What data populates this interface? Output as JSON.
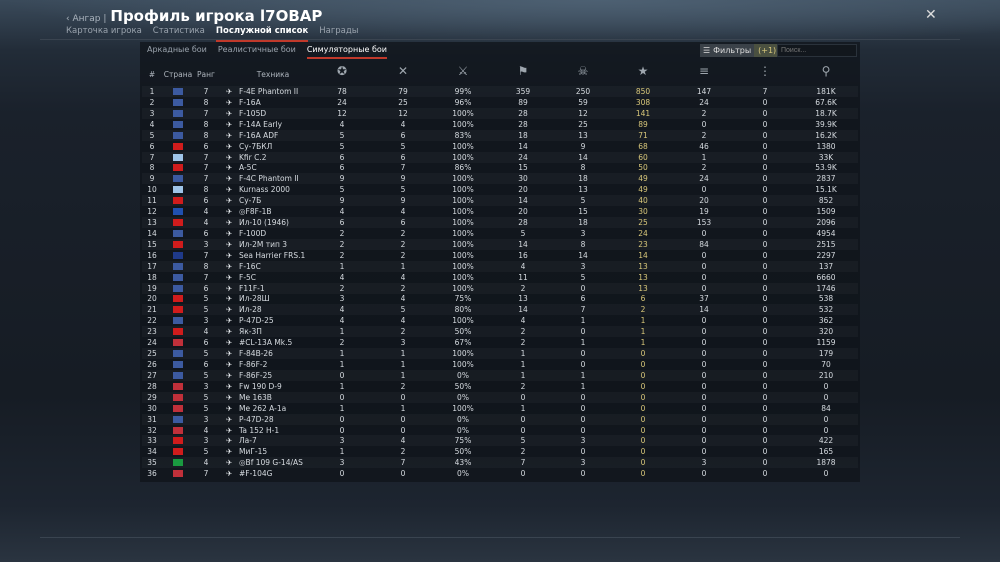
{
  "header": {
    "back_label": "Ангар",
    "separator": "|",
    "title": "Профиль игрока l7OBAP"
  },
  "tabs": [
    {
      "label": "Карточка игрока"
    },
    {
      "label": "Статистика"
    },
    {
      "label": "Послужной список",
      "active": true
    },
    {
      "label": "Награды"
    }
  ],
  "subtabs": [
    {
      "label": "Аркадные бои"
    },
    {
      "label": "Реалистичные бои"
    },
    {
      "label": "Симуляторные бои",
      "active": true
    }
  ],
  "filter": {
    "label": "Фильтры",
    "count": "(+1)"
  },
  "search": {
    "placeholder": "Поиск..."
  },
  "columns": {
    "num": "#",
    "country": "Страна",
    "rank": "Ранг",
    "vehicle": "Техника",
    "stat_icons": [
      "rank-star-icon",
      "battles-crossed-swords-icon",
      "victories-icon",
      "missions-flag-icon",
      "deaths-skull-icon",
      "air-kills-stars-icon",
      "ground-kills-icon",
      "naval-kills-icon",
      "respawns-icon"
    ]
  },
  "flag_colors": {
    "us": "#3c5aa0",
    "ussr": "#d01c1c",
    "china": "#d01c1c",
    "israel": "#9fc4e8",
    "france": "#2050b0",
    "uk": "#1f3a8a",
    "germany": "#c0303a",
    "italy": "#1a9a40"
  },
  "accent_yellow": "#d8c77a",
  "rows": [
    [
      "1",
      "us",
      "7",
      "F-4E Phantom II",
      "78",
      "79",
      "99%",
      "359",
      "250",
      "850",
      "147",
      "7",
      "181K"
    ],
    [
      "2",
      "us",
      "8",
      "F-16A",
      "24",
      "25",
      "96%",
      "89",
      "59",
      "308",
      "24",
      "0",
      "67.6K"
    ],
    [
      "3",
      "us",
      "7",
      "F-105D",
      "12",
      "12",
      "100%",
      "28",
      "12",
      "141",
      "2",
      "0",
      "18.7K"
    ],
    [
      "4",
      "us",
      "8",
      "F-14A Early",
      "4",
      "4",
      "100%",
      "28",
      "25",
      "89",
      "0",
      "0",
      "39.9K"
    ],
    [
      "5",
      "us",
      "8",
      "F-16A ADF",
      "5",
      "6",
      "83%",
      "18",
      "13",
      "71",
      "2",
      "0",
      "16.2K"
    ],
    [
      "6",
      "ussr",
      "6",
      "Су-7БКЛ",
      "5",
      "5",
      "100%",
      "14",
      "9",
      "68",
      "46",
      "0",
      "1380"
    ],
    [
      "7",
      "israel",
      "7",
      "Kfir C.2",
      "6",
      "6",
      "100%",
      "24",
      "14",
      "60",
      "1",
      "0",
      "33K"
    ],
    [
      "8",
      "china",
      "7",
      "A-5C",
      "6",
      "7",
      "86%",
      "15",
      "8",
      "50",
      "2",
      "0",
      "53.9K"
    ],
    [
      "9",
      "us",
      "7",
      "F-4C Phantom II",
      "9",
      "9",
      "100%",
      "30",
      "18",
      "49",
      "24",
      "0",
      "2837"
    ],
    [
      "10",
      "israel",
      "8",
      "Kurnass 2000",
      "5",
      "5",
      "100%",
      "20",
      "13",
      "49",
      "0",
      "0",
      "15.1K"
    ],
    [
      "11",
      "ussr",
      "6",
      "Су-7Б",
      "9",
      "9",
      "100%",
      "14",
      "5",
      "40",
      "20",
      "0",
      "852"
    ],
    [
      "12",
      "france",
      "4",
      "◎F8F-1B",
      "4",
      "4",
      "100%",
      "20",
      "15",
      "30",
      "19",
      "0",
      "1509"
    ],
    [
      "13",
      "china",
      "4",
      "Ил-10 (1946)",
      "6",
      "6",
      "100%",
      "28",
      "18",
      "25",
      "153",
      "0",
      "2096"
    ],
    [
      "14",
      "us",
      "6",
      "F-100D",
      "2",
      "2",
      "100%",
      "5",
      "3",
      "24",
      "0",
      "0",
      "4954"
    ],
    [
      "15",
      "china",
      "3",
      "Ил-2М тип 3",
      "2",
      "2",
      "100%",
      "14",
      "8",
      "23",
      "84",
      "0",
      "2515"
    ],
    [
      "16",
      "uk",
      "7",
      "Sea Harrier FRS.1",
      "2",
      "2",
      "100%",
      "16",
      "14",
      "14",
      "0",
      "0",
      "2297"
    ],
    [
      "17",
      "us",
      "8",
      "F-16C",
      "1",
      "1",
      "100%",
      "4",
      "3",
      "13",
      "0",
      "0",
      "137"
    ],
    [
      "18",
      "us",
      "7",
      "F-5C",
      "4",
      "4",
      "100%",
      "11",
      "5",
      "13",
      "0",
      "0",
      "6660"
    ],
    [
      "19",
      "us",
      "6",
      "F11F-1",
      "2",
      "2",
      "100%",
      "2",
      "0",
      "13",
      "0",
      "0",
      "1746"
    ],
    [
      "20",
      "china",
      "5",
      "Ил-28Ш",
      "3",
      "4",
      "75%",
      "13",
      "6",
      "6",
      "37",
      "0",
      "538"
    ],
    [
      "21",
      "china",
      "5",
      "Ил-28",
      "4",
      "5",
      "80%",
      "14",
      "7",
      "2",
      "14",
      "0",
      "532"
    ],
    [
      "22",
      "us",
      "3",
      "P-47D-25",
      "4",
      "4",
      "100%",
      "4",
      "1",
      "1",
      "0",
      "0",
      "362"
    ],
    [
      "23",
      "china",
      "4",
      "Як-3П",
      "1",
      "2",
      "50%",
      "2",
      "0",
      "1",
      "0",
      "0",
      "320"
    ],
    [
      "24",
      "germany",
      "6",
      "#CL-13A Mk.5",
      "2",
      "3",
      "67%",
      "2",
      "1",
      "1",
      "0",
      "0",
      "1159"
    ],
    [
      "25",
      "us",
      "5",
      "F-84B-26",
      "1",
      "1",
      "100%",
      "1",
      "0",
      "0",
      "0",
      "0",
      "179"
    ],
    [
      "26",
      "us",
      "6",
      "F-86F-2",
      "1",
      "1",
      "100%",
      "1",
      "0",
      "0",
      "0",
      "0",
      "70"
    ],
    [
      "27",
      "us",
      "5",
      "F-86F-25",
      "0",
      "1",
      "0%",
      "1",
      "1",
      "0",
      "0",
      "0",
      "210"
    ],
    [
      "28",
      "germany",
      "3",
      "Fw 190 D-9",
      "1",
      "2",
      "50%",
      "2",
      "1",
      "0",
      "0",
      "0",
      "0"
    ],
    [
      "29",
      "germany",
      "5",
      "Me 163B",
      "0",
      "0",
      "0%",
      "0",
      "0",
      "0",
      "0",
      "0",
      "0"
    ],
    [
      "30",
      "germany",
      "5",
      "Me 262 A-1a",
      "1",
      "1",
      "100%",
      "1",
      "0",
      "0",
      "0",
      "0",
      "84"
    ],
    [
      "31",
      "us",
      "3",
      "P-47D-28",
      "0",
      "0",
      "0%",
      "0",
      "0",
      "0",
      "0",
      "0",
      "0"
    ],
    [
      "32",
      "germany",
      "4",
      "Ta 152 H-1",
      "0",
      "0",
      "0%",
      "0",
      "0",
      "0",
      "0",
      "0",
      "0"
    ],
    [
      "33",
      "ussr",
      "3",
      "Ла-7",
      "3",
      "4",
      "75%",
      "5",
      "3",
      "0",
      "0",
      "0",
      "422"
    ],
    [
      "34",
      "ussr",
      "5",
      "МиГ-15",
      "1",
      "2",
      "50%",
      "2",
      "0",
      "0",
      "0",
      "0",
      "165"
    ],
    [
      "35",
      "italy",
      "4",
      "◎Bf 109 G-14/AS",
      "3",
      "7",
      "43%",
      "7",
      "3",
      "0",
      "3",
      "0",
      "1878"
    ],
    [
      "36",
      "germany",
      "7",
      "#F-104G",
      "0",
      "0",
      "0%",
      "0",
      "0",
      "0",
      "0",
      "0",
      "0"
    ]
  ]
}
